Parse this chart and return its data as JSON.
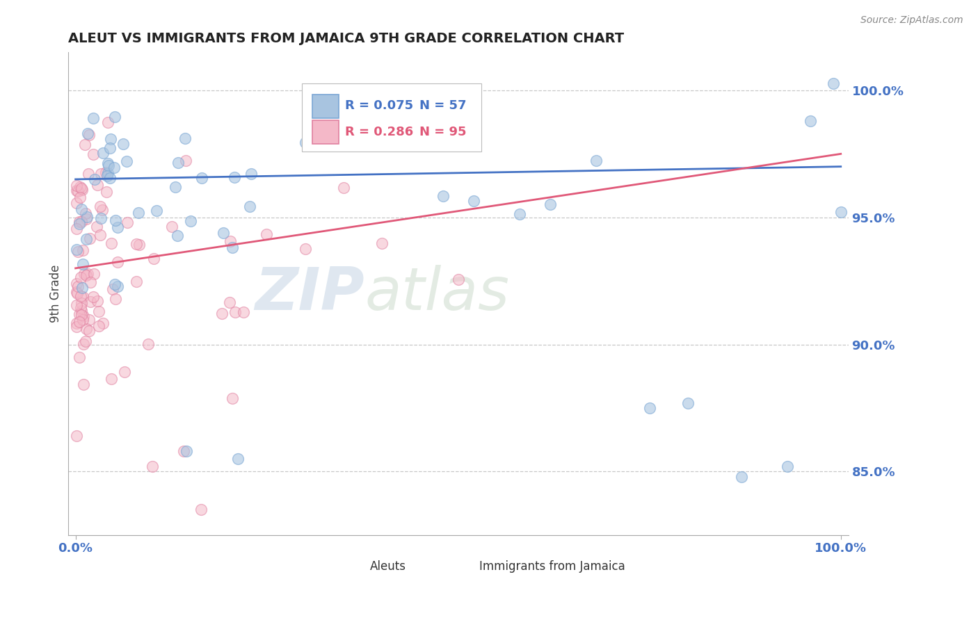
{
  "title": "ALEUT VS IMMIGRANTS FROM JAMAICA 9TH GRADE CORRELATION CHART",
  "source_text": "Source: ZipAtlas.com",
  "ylabel": "9th Grade",
  "ytick_labels": [
    "85.0%",
    "90.0%",
    "95.0%",
    "100.0%"
  ],
  "ytick_values": [
    0.85,
    0.9,
    0.95,
    1.0
  ],
  "xlim": [
    0.0,
    1.0
  ],
  "ylim": [
    0.825,
    1.015
  ],
  "legend_blue_r": "R = 0.075",
  "legend_blue_n": "N = 57",
  "legend_pink_r": "R = 0.286",
  "legend_pink_n": "N = 95",
  "blue_color": "#a8c4e0",
  "blue_edge_color": "#7ba7d4",
  "pink_color": "#f4b8c8",
  "pink_edge_color": "#e080a0",
  "blue_line_color": "#4472c4",
  "pink_line_color": "#e05878",
  "grid_color": "#c8c8c8",
  "title_color": "#222222",
  "axis_tick_color": "#4472c4",
  "watermark_zip_color": "#c8d8e8",
  "watermark_atlas_color": "#d0d8d0",
  "blue_line_y0": 0.965,
  "blue_line_y1": 0.97,
  "pink_line_y0": 0.93,
  "pink_line_y1": 0.975
}
